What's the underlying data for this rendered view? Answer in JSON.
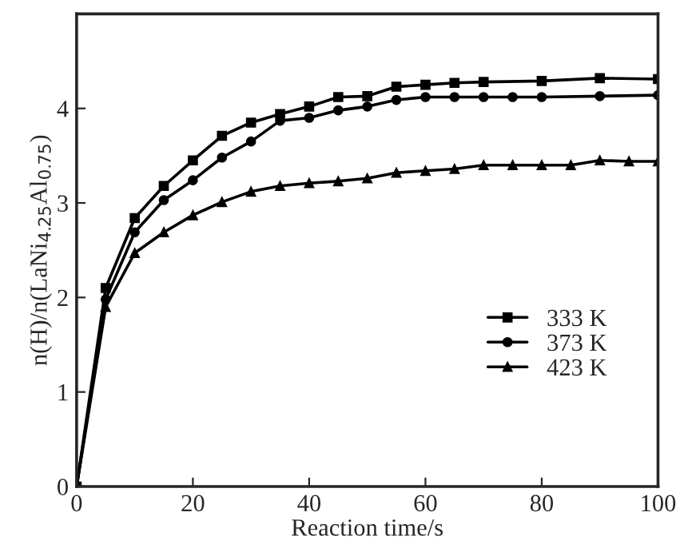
{
  "chart_data": {
    "type": "line",
    "xlabel": "Reaction time/s",
    "ylabel": "n(H)/n(LaNi$_{4.25}$Al$_{0.75}$)",
    "xlim": [
      0,
      100
    ],
    "xticks": [
      0,
      20,
      40,
      60,
      80,
      100
    ],
    "ylim": [
      0,
      5
    ],
    "yticks": [
      0,
      1,
      2,
      3,
      4
    ],
    "grid": false,
    "legend": "right",
    "series": [
      {
        "name": "333 K",
        "color": "#000000",
        "marker": "square",
        "x": [
          0,
          5,
          10,
          15,
          20,
          25,
          30,
          35,
          40,
          45,
          50,
          55,
          60,
          65,
          70,
          80,
          90,
          100
        ],
        "values": [
          0,
          2.1,
          2.84,
          3.18,
          3.45,
          3.71,
          3.85,
          3.94,
          4.02,
          4.12,
          4.13,
          4.23,
          4.25,
          4.27,
          4.28,
          4.29,
          4.32,
          4.31
        ]
      },
      {
        "name": "373 K",
        "color": "#000000",
        "marker": "circle",
        "x": [
          0,
          5,
          10,
          15,
          20,
          25,
          30,
          35,
          40,
          45,
          50,
          55,
          60,
          65,
          70,
          75,
          80,
          90,
          100
        ],
        "values": [
          0,
          1.98,
          2.69,
          3.03,
          3.24,
          3.48,
          3.65,
          3.87,
          3.9,
          3.98,
          4.02,
          4.09,
          4.12,
          4.12,
          4.12,
          4.12,
          4.12,
          4.13,
          4.14
        ]
      },
      {
        "name": "423 K",
        "color": "#000000",
        "marker": "triangle",
        "x": [
          0,
          5,
          10,
          15,
          20,
          25,
          30,
          35,
          40,
          45,
          50,
          55,
          60,
          65,
          70,
          75,
          80,
          85,
          90,
          95,
          100
        ],
        "values": [
          0,
          1.9,
          2.47,
          2.69,
          2.87,
          3.01,
          3.12,
          3.18,
          3.21,
          3.23,
          3.26,
          3.32,
          3.34,
          3.36,
          3.4,
          3.4,
          3.4,
          3.4,
          3.45,
          3.44,
          3.44
        ]
      }
    ]
  }
}
